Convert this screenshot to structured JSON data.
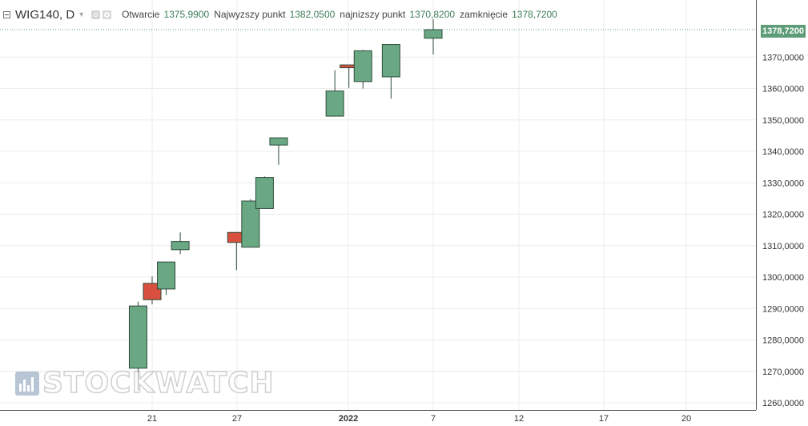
{
  "header": {
    "symbol": "WIG140, D",
    "open_label": "Otwarcie",
    "open_value": "1375,9900",
    "high_label": "Najwyzszy punkt",
    "high_value": "1382,0500",
    "low_label": "najnizszy punkt",
    "low_value": "1370,8200",
    "close_label": "zamknięcie",
    "close_value": "1378,7200"
  },
  "current_price_label": "1378,7200",
  "watermark": "STOCKWATCH",
  "colors": {
    "up": "#6aa884",
    "down": "#d9503e",
    "wick": "#2f4a3a",
    "grid": "#ececec",
    "price_line": "#5c9c76",
    "axis_text": "#333333"
  },
  "icons": [
    "collapse-icon",
    "caret-down-icon",
    "eye-icon",
    "gear-icon",
    "stockwatch-logo-icon"
  ],
  "chart_data": {
    "type": "candlestick",
    "x_ticks": [
      "21",
      "27",
      "2022",
      "7",
      "12",
      "17",
      "20"
    ],
    "y_ticks": [
      "1260,0000",
      "1270,0000",
      "1280,0000",
      "1290,0000",
      "1300,0000",
      "1310,0000",
      "1320,0000",
      "1330,0000",
      "1340,0000",
      "1350,0000",
      "1360,0000",
      "1370,0000"
    ],
    "ylim": [
      1256,
      1385
    ],
    "current_price": 1378.72,
    "candles": [
      {
        "date": "2021-12-20",
        "open": 1271.0,
        "high": 1292.2,
        "low": 1264.0,
        "close": 1290.8
      },
      {
        "date": "2021-12-21",
        "open": 1298.0,
        "high": 1300.2,
        "low": 1291.3,
        "close": 1292.8
      },
      {
        "date": "2021-12-22",
        "open": 1296.2,
        "high": 1304.8,
        "low": 1294.3,
        "close": 1304.8
      },
      {
        "date": "2021-12-23",
        "open": 1308.7,
        "high": 1314.2,
        "low": 1307.3,
        "close": 1311.3
      },
      {
        "date": "2021-12-27",
        "open": 1314.2,
        "high": 1314.2,
        "low": 1302.2,
        "close": 1311.0
      },
      {
        "date": "2021-12-28",
        "open": 1309.5,
        "high": 1324.8,
        "low": 1309.5,
        "close": 1324.2
      },
      {
        "date": "2021-12-29",
        "open": 1321.8,
        "high": 1332.0,
        "low": 1321.8,
        "close": 1331.7
      },
      {
        "date": "2021-12-30",
        "open": 1342.0,
        "high": 1344.3,
        "low": 1335.7,
        "close": 1344.3
      },
      {
        "date": "2022-01-03",
        "open": 1351.2,
        "high": 1365.8,
        "low": 1351.2,
        "close": 1359.2
      },
      {
        "date": "2022-01-04",
        "open": 1367.5,
        "high": 1367.5,
        "low": 1360.2,
        "close": 1366.6
      },
      {
        "date": "2022-01-05",
        "open": 1362.2,
        "high": 1372.3,
        "low": 1360.0,
        "close": 1372.0
      },
      {
        "date": "2022-01-07",
        "open": 1363.7,
        "high": 1374.0,
        "low": 1356.8,
        "close": 1374.0
      },
      {
        "date": "2022-01-10",
        "open": 1375.99,
        "high": 1382.05,
        "low": 1370.82,
        "close": 1378.72
      }
    ]
  }
}
